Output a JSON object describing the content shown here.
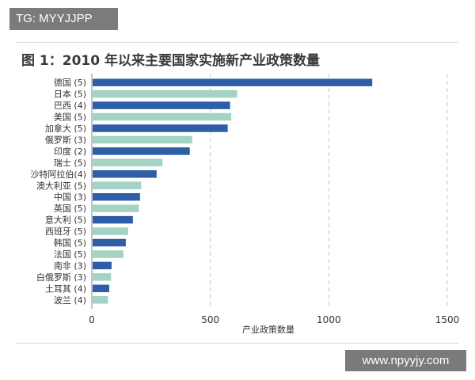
{
  "watermark_top": "TG: MYYJJPP",
  "watermark_bottom": "www.npyyjy.com",
  "colors": {
    "dark_blue": "#2f5ea8",
    "light_green": "#a3d3c3",
    "grid": "#c8c8c8",
    "axis": "#888888"
  },
  "chart_data": {
    "type": "bar",
    "orientation": "horizontal",
    "title": "图 1：2010 年以来主要国家实施新产业政策数量",
    "xlabel": "产业政策数量",
    "ylabel": "",
    "xlim": [
      0,
      1500
    ],
    "xticks": [
      0,
      500,
      1000,
      1500
    ],
    "grid": "vertical-dashed",
    "categories": [
      "德国 (5)",
      "日本 (5)",
      "巴西 (4)",
      "美国 (5)",
      "加拿大 (5)",
      "俄罗斯 (3)",
      "印度 (2)",
      "瑞士 (5)",
      "沙特阿拉伯(4)",
      "澳大利亚 (5)",
      "中国 (3)",
      "英国 (5)",
      "意大利 (5)",
      "西班牙 (5)",
      "韩国 (5)",
      "法国 (5)",
      "南非 (3)",
      "白俄罗斯 (3)",
      "土耳其 (4)",
      "波兰 (4)"
    ],
    "values": [
      1180,
      610,
      580,
      585,
      570,
      420,
      410,
      295,
      270,
      205,
      200,
      195,
      170,
      150,
      140,
      130,
      80,
      78,
      70,
      65
    ],
    "bar_colors": [
      "dark",
      "light",
      "dark",
      "light",
      "dark",
      "light",
      "dark",
      "light",
      "dark",
      "light",
      "dark",
      "light",
      "dark",
      "light",
      "dark",
      "light",
      "dark",
      "light",
      "dark",
      "light"
    ]
  }
}
